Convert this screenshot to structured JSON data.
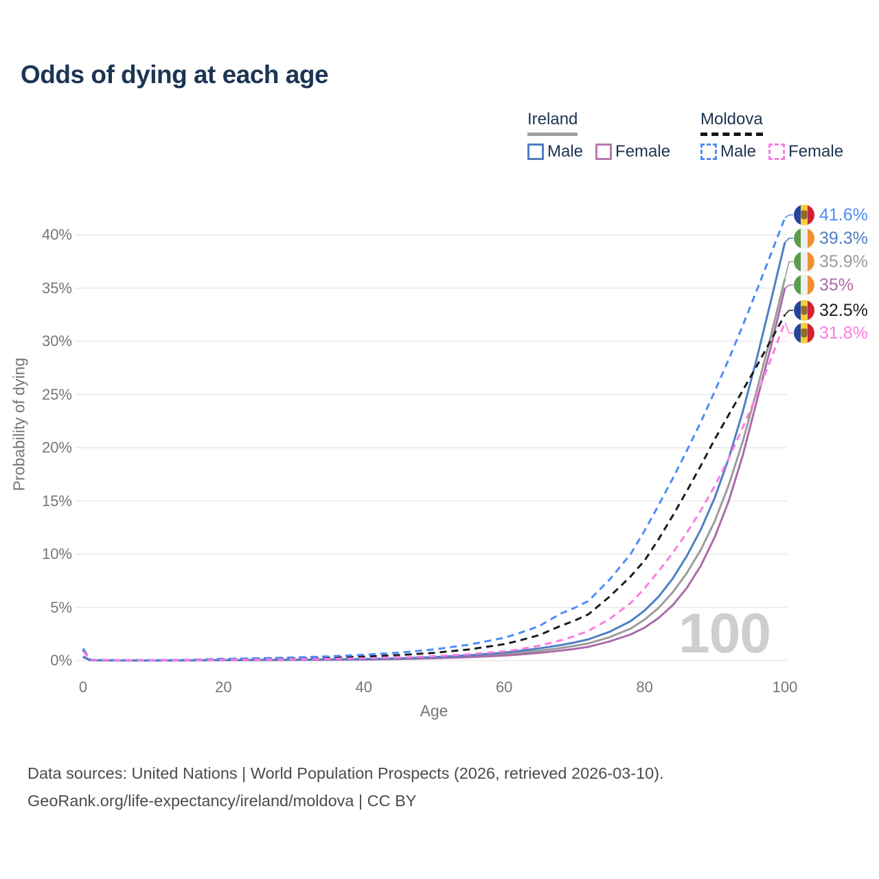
{
  "title": "Odds of dying at each age",
  "legend": {
    "ireland_label": "Ireland",
    "moldova_label": "Moldova",
    "ireland_male_label": "Male",
    "ireland_female_label": "Female",
    "moldova_male_label": "Male",
    "moldova_female_label": "Female"
  },
  "colors": {
    "title": "#1c3554",
    "ireland_male": "#4e7fc1",
    "ireland_female": "#ab6ba8",
    "ireland_total": "#9b9b9b",
    "moldova_male": "#4d8cf5",
    "moldova_female": "#fb7ce4",
    "moldova_total": "#1c1c1c",
    "gridline": "#e8e8ec",
    "tick_text": "#76767a",
    "watermark": "#cecece"
  },
  "chart_data": {
    "type": "line",
    "title": "Odds of dying at each age",
    "xlabel": "Age",
    "ylabel": "Probability of dying",
    "xlim": [
      0,
      100
    ],
    "ylim": [
      0,
      42
    ],
    "x_ticks": [
      0,
      20,
      40,
      60,
      80,
      100
    ],
    "y_ticks": [
      0,
      5,
      10,
      15,
      20,
      25,
      30,
      35,
      40
    ],
    "y_tick_suffix": "%",
    "grid": "horizontal-only",
    "legend_position": "top-right",
    "watermark": "100",
    "x": [
      0,
      1,
      5,
      10,
      15,
      20,
      25,
      30,
      35,
      40,
      45,
      50,
      55,
      60,
      62,
      65,
      68,
      70,
      72,
      75,
      78,
      80,
      82,
      84,
      86,
      88,
      90,
      92,
      94,
      96,
      98,
      100
    ],
    "series": [
      {
        "name": "Ireland total",
        "country": "Ireland",
        "sex": "total",
        "color": "#9b9b9b",
        "dash": "solid",
        "flag": "ireland",
        "end_label": "35.9%",
        "end_value": 35.9,
        "values": [
          0.37,
          0.03,
          0.01,
          0.01,
          0.02,
          0.05,
          0.06,
          0.07,
          0.09,
          0.12,
          0.18,
          0.27,
          0.4,
          0.6,
          0.72,
          0.92,
          1.18,
          1.38,
          1.62,
          2.2,
          3.0,
          3.85,
          4.95,
          6.4,
          8.2,
          10.4,
          13.1,
          16.5,
          20.6,
          25.4,
          30.5,
          35.9
        ]
      },
      {
        "name": "Ireland female",
        "country": "Ireland",
        "sex": "female",
        "color": "#ab6ba8",
        "dash": "solid",
        "flag": "ireland",
        "end_label": "35%",
        "end_value": 35.0,
        "values": [
          0.33,
          0.03,
          0.01,
          0.01,
          0.02,
          0.04,
          0.05,
          0.06,
          0.08,
          0.1,
          0.15,
          0.22,
          0.32,
          0.48,
          0.57,
          0.73,
          0.94,
          1.1,
          1.3,
          1.8,
          2.45,
          3.1,
          4.0,
          5.2,
          6.8,
          8.9,
          11.6,
          15.0,
          19.3,
          24.4,
          29.5,
          35.0
        ]
      },
      {
        "name": "Ireland male",
        "country": "Ireland",
        "sex": "male",
        "color": "#4e7fc1",
        "dash": "solid",
        "flag": "ireland",
        "end_label": "39.3%",
        "end_value": 39.3,
        "values": [
          0.4,
          0.03,
          0.01,
          0.01,
          0.03,
          0.06,
          0.07,
          0.09,
          0.12,
          0.15,
          0.22,
          0.33,
          0.5,
          0.75,
          0.9,
          1.15,
          1.45,
          1.7,
          2.0,
          2.7,
          3.7,
          4.7,
          6.0,
          7.7,
          9.8,
          12.3,
          15.3,
          19.0,
          23.4,
          28.4,
          33.8,
          39.3
        ]
      },
      {
        "name": "Moldova total",
        "country": "Moldova",
        "sex": "total",
        "color": "#1c1c1c",
        "dash": "dashed",
        "flag": "moldova",
        "end_label": "32.5%",
        "end_value": 32.5,
        "values": [
          1.0,
          0.08,
          0.04,
          0.04,
          0.06,
          0.12,
          0.16,
          0.21,
          0.28,
          0.38,
          0.52,
          0.73,
          1.05,
          1.55,
          1.85,
          2.4,
          3.25,
          3.75,
          4.35,
          6.0,
          7.9,
          9.4,
          11.4,
          13.6,
          15.9,
          18.3,
          20.8,
          23.1,
          25.4,
          27.7,
          30.1,
          32.5
        ]
      },
      {
        "name": "Moldova male",
        "country": "Moldova",
        "sex": "male",
        "color": "#4d8cf5",
        "dash": "dashed",
        "flag": "moldova",
        "end_label": "41.6%",
        "end_value": 41.6,
        "values": [
          1.15,
          0.09,
          0.05,
          0.05,
          0.08,
          0.17,
          0.22,
          0.3,
          0.4,
          0.55,
          0.75,
          1.05,
          1.5,
          2.15,
          2.55,
          3.25,
          4.4,
          4.95,
          5.6,
          7.6,
          10.0,
          12.2,
          14.6,
          17.1,
          19.7,
          22.4,
          25.3,
          28.3,
          31.5,
          34.8,
          38.2,
          41.6
        ]
      },
      {
        "name": "Moldova female",
        "country": "Moldova",
        "sex": "female",
        "color": "#fb7ce4",
        "dash": "dashed",
        "flag": "moldova",
        "end_label": "31.8%",
        "end_value": 31.8,
        "values": [
          0.9,
          0.07,
          0.03,
          0.03,
          0.04,
          0.07,
          0.09,
          0.12,
          0.16,
          0.21,
          0.29,
          0.41,
          0.6,
          0.88,
          1.05,
          1.4,
          1.9,
          2.3,
          2.8,
          3.9,
          5.4,
          6.8,
          8.4,
          10.1,
          12.0,
          14.1,
          16.4,
          19.0,
          21.9,
          25.0,
          28.3,
          31.8
        ]
      }
    ]
  },
  "footer": {
    "line1": "Data sources: United Nations | World Population Prospects (2026, retrieved 2026-03-10).",
    "line2": "GeoRank.org/life-expectancy/ireland/moldova | CC BY"
  }
}
